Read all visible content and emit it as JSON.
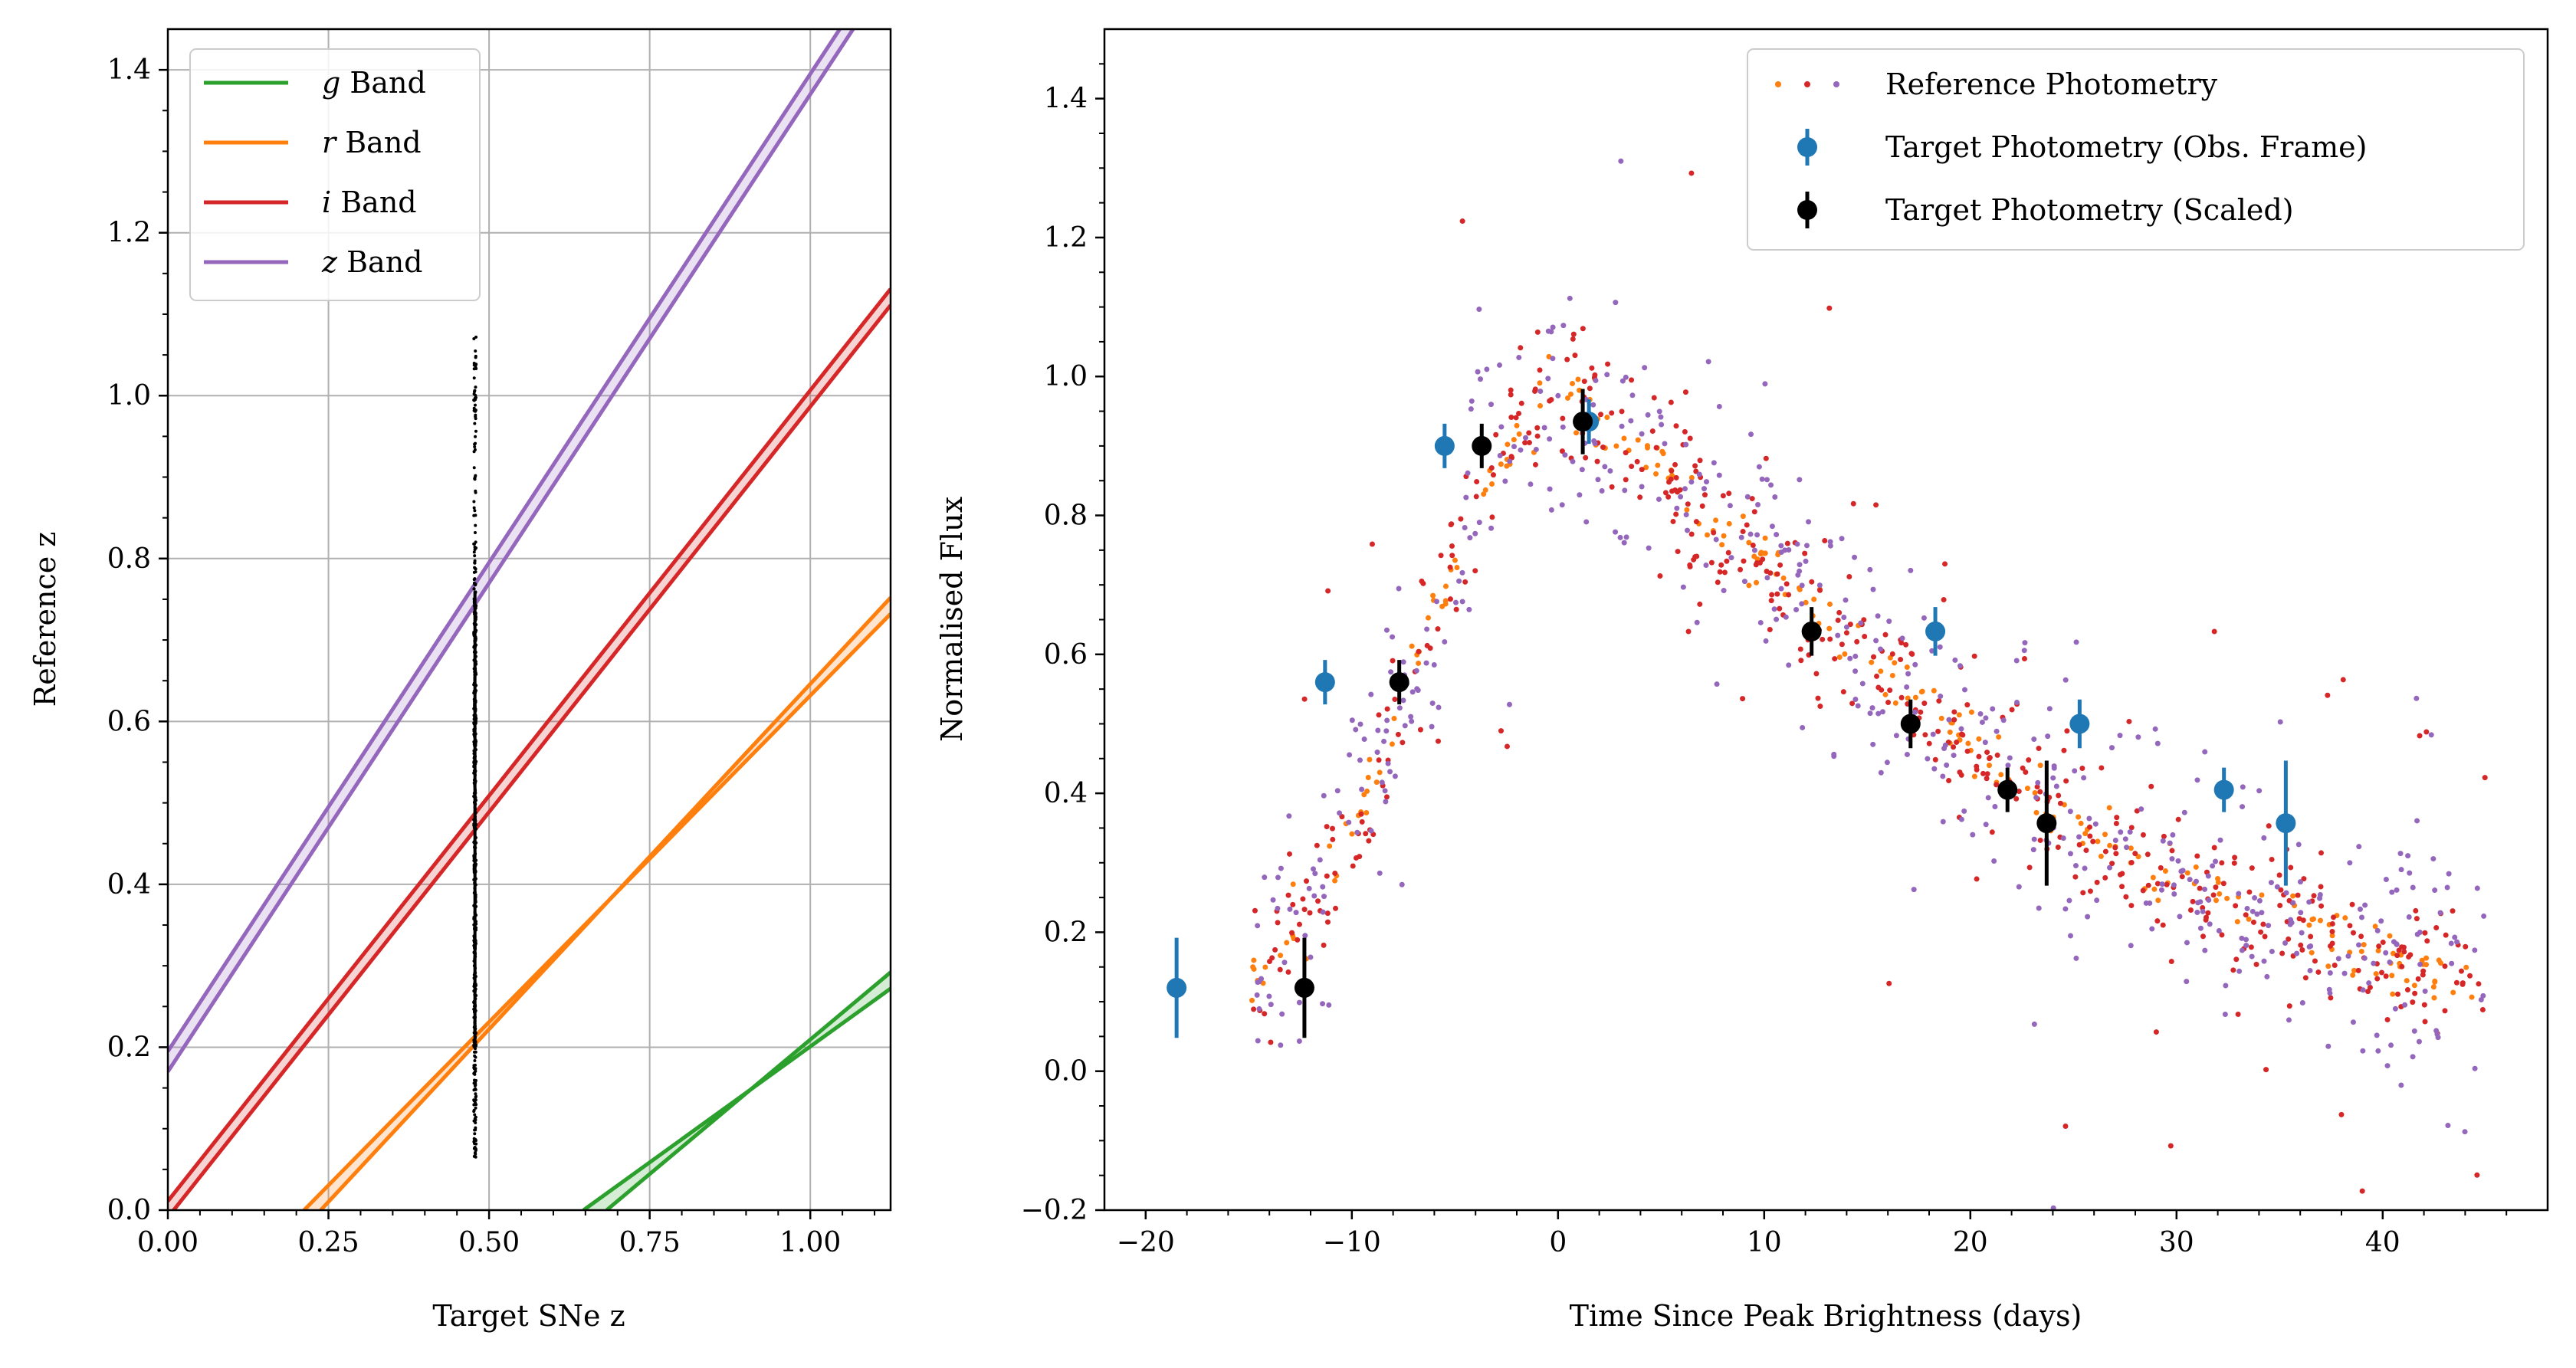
{
  "chart_data": [
    {
      "type": "line",
      "xlabel": "Target SNe z",
      "ylabel": "Reference z",
      "xlim": [
        0.0,
        1.125
      ],
      "ylim": [
        0.0,
        1.45
      ],
      "xticks": [
        0.0,
        0.25,
        0.5,
        0.75,
        1.0
      ],
      "xtick_labels": [
        "0.00",
        "0.25",
        "0.50",
        "0.75",
        "1.00"
      ],
      "yticks": [
        0.0,
        0.2,
        0.4,
        0.6,
        0.8,
        1.0,
        1.2,
        1.4
      ],
      "ytick_labels": [
        "0.0",
        "0.2",
        "0.4",
        "0.6",
        "0.8",
        "1.0",
        "1.2",
        "1.4"
      ],
      "grid": true,
      "legend_position": "top-left",
      "series": [
        {
          "name": "g Band",
          "label_italic": "g",
          "label_rest": " Band",
          "color": "#2ca02c",
          "band_lines": [
            {
              "x": [
                0.647,
                1.125
              ],
              "y": [
                0.0,
                0.272
              ]
            },
            {
              "x": [
                0.683,
                1.125
              ],
              "y": [
                0.0,
                0.292
              ]
            }
          ],
          "fill": "#2ca02c"
        },
        {
          "name": "r Band",
          "label_italic": "r",
          "label_rest": " Band",
          "color": "#ff7f0e",
          "band_lines": [
            {
              "x": [
                0.212,
                1.125
              ],
              "y": [
                0.0,
                0.732
              ]
            },
            {
              "x": [
                0.238,
                1.125
              ],
              "y": [
                0.0,
                0.752
              ]
            }
          ],
          "fill": "#ff7f0e"
        },
        {
          "name": "i Band",
          "label_italic": "i",
          "label_rest": " Band",
          "color": "#d62728",
          "band_lines": [
            {
              "x": [
                0.0,
                1.125
              ],
              "y": [
                -0.009,
                1.111
              ]
            },
            {
              "x": [
                0.0,
                1.125
              ],
              "y": [
                0.011,
                1.131
              ]
            }
          ],
          "fill": "#d62728"
        },
        {
          "name": "z Band",
          "label_italic": "z",
          "label_rest": " Band",
          "color": "#9467bd",
          "band_lines": [
            {
              "x": [
                0.0,
                1.125
              ],
              "y": [
                0.17,
                1.52
              ]
            },
            {
              "x": [
                0.0,
                1.125
              ],
              "y": [
                0.195,
                1.545
              ]
            }
          ],
          "fill": "#9467bd"
        }
      ],
      "vertical_points": {
        "x": 0.478,
        "y_min": 0.06,
        "y_max": 1.085,
        "color": "#000000"
      }
    },
    {
      "type": "scatter",
      "xlabel": "Time Since Peak Brightness (days)",
      "ylabel": "Normalised Flux",
      "xlim": [
        -22,
        48
      ],
      "ylim": [
        -0.2,
        1.5
      ],
      "xticks": [
        -20,
        -10,
        0,
        10,
        20,
        30,
        40
      ],
      "xtick_labels": [
        "−20",
        "−10",
        "0",
        "10",
        "20",
        "30",
        "40"
      ],
      "yticks": [
        -0.2,
        0.0,
        0.2,
        0.4,
        0.6,
        0.8,
        1.0,
        1.2,
        1.4
      ],
      "ytick_labels": [
        "−0.2",
        "0.0",
        "0.2",
        "0.4",
        "0.6",
        "0.8",
        "1.0",
        "1.2",
        "1.4"
      ],
      "grid": false,
      "legend_position": "top-right",
      "legend": [
        {
          "name": "Reference Photometry",
          "kind": "dots"
        },
        {
          "name": "Target Photometry (Obs. Frame)",
          "kind": "errorbar",
          "color": "#1f77b4"
        },
        {
          "name": "Target Photometry (Scaled)",
          "kind": "errorbar",
          "color": "#000000"
        }
      ],
      "reference_colors": [
        "#ff7f0e",
        "#d62728",
        "#9467bd"
      ],
      "target_obs": {
        "color": "#1f77b4",
        "x": [
          -18.5,
          -11.3,
          -5.5,
          1.5,
          18.3,
          25.3,
          32.3,
          35.3
        ],
        "y": [
          0.12,
          0.56,
          0.9,
          0.935,
          0.633,
          0.5,
          0.405,
          0.357
        ],
        "yerr": [
          0.072,
          0.032,
          0.032,
          0.032,
          0.035,
          0.035,
          0.032,
          0.09
        ]
      },
      "target_scaled": {
        "color": "#000000",
        "x": [
          -12.3,
          -7.7,
          -3.7,
          1.2,
          12.3,
          17.1,
          21.8,
          23.7
        ],
        "y": [
          0.12,
          0.56,
          0.9,
          0.935,
          0.633,
          0.5,
          0.405,
          0.357
        ],
        "yerr": [
          0.072,
          0.032,
          0.032,
          0.047,
          0.035,
          0.035,
          0.032,
          0.09
        ]
      }
    }
  ]
}
